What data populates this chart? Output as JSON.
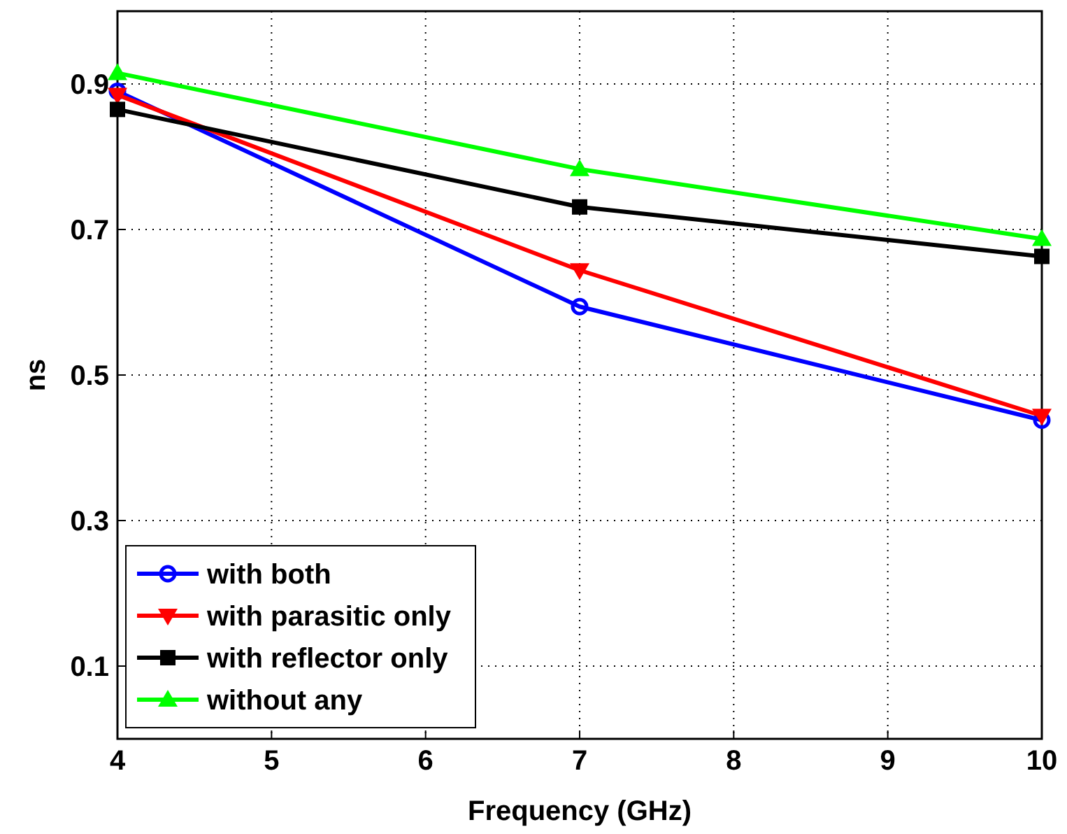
{
  "chart_data": {
    "type": "line",
    "xlabel": "Frequency (GHz)",
    "ylabel": "ns",
    "x": [
      4,
      7,
      10
    ],
    "xlim": [
      4,
      10
    ],
    "xticks": [
      4,
      5,
      6,
      7,
      8,
      9,
      10
    ],
    "ylim": [
      0,
      1
    ],
    "yticks": [
      0.1,
      0.3,
      0.5,
      0.7,
      0.9
    ],
    "grid": true,
    "legend": "bottom left",
    "series": [
      {
        "name": "with both",
        "color": "#0000ff",
        "marker": "circle",
        "values": [
          0.89,
          0.594,
          0.438
        ]
      },
      {
        "name": "with parasitic only",
        "color": "#ff0000",
        "marker": "triangle-down",
        "values": [
          0.885,
          0.644,
          0.444
        ]
      },
      {
        "name": "with reflector only",
        "color": "#000000",
        "marker": "square",
        "values": [
          0.865,
          0.731,
          0.663
        ]
      },
      {
        "name": "without any",
        "color": "#00ff00",
        "marker": "triangle",
        "values": [
          0.915,
          0.783,
          0.687
        ]
      }
    ]
  }
}
